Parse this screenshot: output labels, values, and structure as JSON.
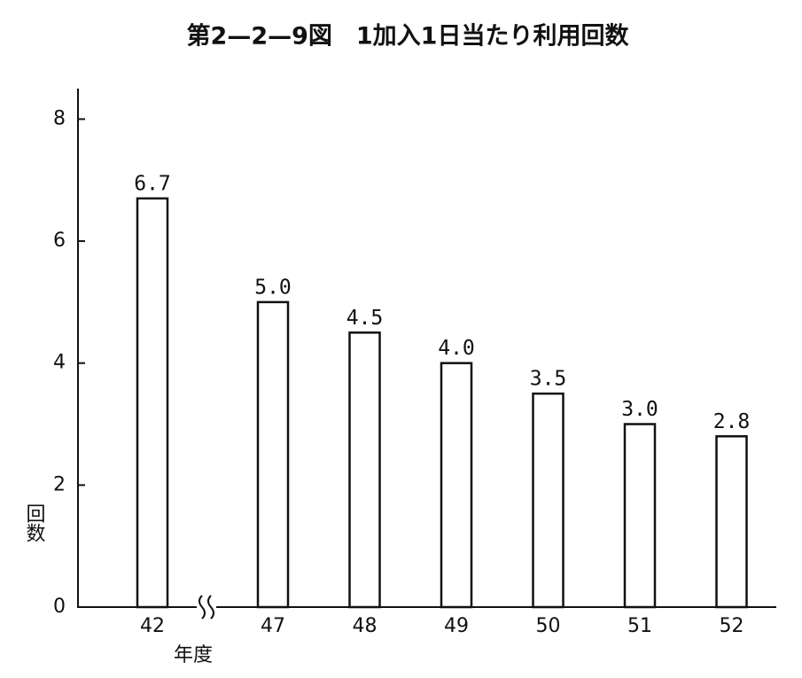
{
  "chart_data": {
    "type": "bar",
    "title": "第2—2—9図　1加入1日当たり利用回数",
    "y_label": "回数",
    "x_label": "年度",
    "categories": [
      "42",
      "47",
      "48",
      "49",
      "50",
      "51",
      "52"
    ],
    "values": [
      6.7,
      5.0,
      4.5,
      4.0,
      3.5,
      3.0,
      2.8
    ],
    "value_labels": [
      "6.7",
      "5.0",
      "4.5",
      "4.0",
      "3.5",
      "3.0",
      "2.8"
    ],
    "color": "#ffffff",
    "ylim": [
      0,
      8.5
    ],
    "yticks": [
      0,
      2,
      4,
      6,
      8
    ],
    "grid": false
  }
}
